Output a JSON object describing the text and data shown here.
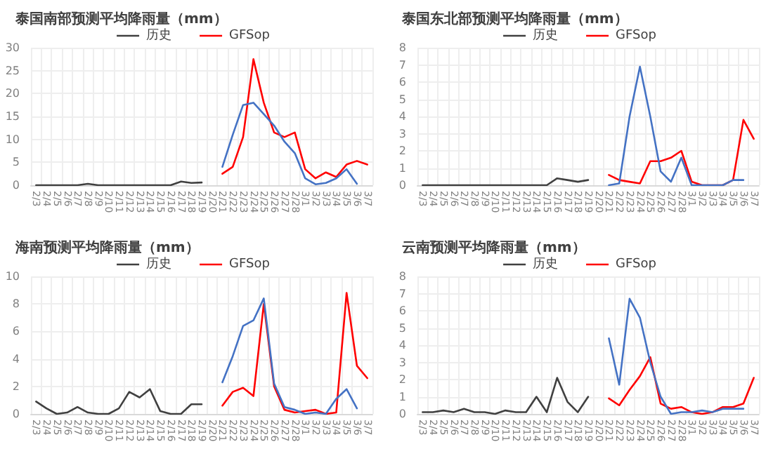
{
  "chart_data": [
    {
      "type": "line",
      "title": "泰国南部预测平均降雨量（mm）",
      "categories": [
        "2/3",
        "2/4",
        "2/5",
        "2/6",
        "2/7",
        "2/8",
        "2/9",
        "2/10",
        "2/11",
        "2/12",
        "2/13",
        "2/14",
        "2/15",
        "2/16",
        "2/17",
        "2/18",
        "2/19",
        "2/20",
        "2/21",
        "2/22",
        "2/23",
        "2/24",
        "2/25",
        "2/26",
        "2/27",
        "2/28",
        "3/1",
        "3/2",
        "3/3",
        "3/4",
        "3/5",
        "3/6",
        "3/7"
      ],
      "series": [
        {
          "name": "历史",
          "color": "#404040",
          "values": [
            0,
            0,
            0,
            0,
            0,
            0.3,
            0,
            0,
            0,
            0,
            0,
            0,
            0,
            0,
            0.8,
            0.5,
            0.6,
            null,
            null,
            null,
            null,
            null,
            null,
            null,
            null,
            null,
            null,
            null,
            null,
            null,
            null,
            null,
            null
          ]
        },
        {
          "name": "GFSop",
          "color": "#ff0000",
          "values": [
            null,
            null,
            null,
            null,
            null,
            null,
            null,
            null,
            null,
            null,
            null,
            null,
            null,
            null,
            null,
            null,
            null,
            null,
            2.5,
            4,
            10.5,
            27.5,
            18,
            11.5,
            10.5,
            11.5,
            3.5,
            1.5,
            2.8,
            1.8,
            4.5,
            5.3,
            4.5
          ]
        },
        {
          "color": "#4472c4",
          "values": [
            null,
            null,
            null,
            null,
            null,
            null,
            null,
            null,
            null,
            null,
            null,
            null,
            null,
            null,
            null,
            null,
            null,
            null,
            4,
            11,
            17.5,
            18,
            15.5,
            13,
            9.5,
            7,
            1.5,
            0.2,
            0.5,
            1.5,
            3.5,
            0.3,
            null
          ]
        }
      ],
      "ylim": [
        0,
        30
      ],
      "yticks": [
        0,
        5,
        10,
        15,
        20,
        25,
        30
      ],
      "grid": true,
      "legend": "top",
      "marker": "none"
    },
    {
      "type": "line",
      "title": "泰国东北部预测平均降雨量（mm）",
      "categories": [
        "2/3",
        "2/4",
        "2/5",
        "2/6",
        "2/7",
        "2/8",
        "2/9",
        "2/10",
        "2/11",
        "2/12",
        "2/13",
        "2/14",
        "2/15",
        "2/16",
        "2/17",
        "2/18",
        "2/19",
        "2/20",
        "2/21",
        "2/22",
        "2/23",
        "2/24",
        "2/25",
        "2/26",
        "2/27",
        "2/28",
        "3/1",
        "3/2",
        "3/3",
        "3/4",
        "3/5",
        "3/6",
        "3/7"
      ],
      "series": [
        {
          "name": "历史",
          "color": "#404040",
          "values": [
            0,
            0,
            0,
            0,
            0,
            0,
            0,
            0,
            0,
            0,
            0,
            0,
            0,
            0.4,
            0.3,
            0.2,
            0.3,
            null,
            null,
            null,
            null,
            null,
            null,
            null,
            null,
            null,
            null,
            null,
            null,
            null,
            null,
            null,
            null
          ]
        },
        {
          "name": "GFSop",
          "color": "#ff0000",
          "values": [
            null,
            null,
            null,
            null,
            null,
            null,
            null,
            null,
            null,
            null,
            null,
            null,
            null,
            null,
            null,
            null,
            null,
            null,
            0.6,
            0.3,
            0.2,
            0.1,
            1.4,
            1.4,
            1.6,
            2,
            0.2,
            0,
            0,
            0,
            0.3,
            3.8,
            2.7
          ]
        },
        {
          "color": "#4472c4",
          "values": [
            null,
            null,
            null,
            null,
            null,
            null,
            null,
            null,
            null,
            null,
            null,
            null,
            null,
            null,
            null,
            null,
            null,
            null,
            0,
            0.1,
            4,
            6.9,
            4,
            0.8,
            0.2,
            1.6,
            0,
            0,
            0,
            0,
            0.3,
            0.3,
            null
          ]
        }
      ],
      "ylim": [
        0,
        8
      ],
      "yticks": [
        0,
        1,
        2,
        3,
        4,
        5,
        6,
        7,
        8
      ],
      "grid": true,
      "legend": "top",
      "marker": "none"
    },
    {
      "type": "line",
      "title": "海南预测平均降雨量（mm）",
      "categories": [
        "2/3",
        "2/4",
        "2/5",
        "2/6",
        "2/7",
        "2/8",
        "2/9",
        "2/10",
        "2/11",
        "2/12",
        "2/13",
        "2/14",
        "2/15",
        "2/16",
        "2/17",
        "2/18",
        "2/19",
        "2/20",
        "2/21",
        "2/22",
        "2/23",
        "2/24",
        "2/25",
        "2/26",
        "2/27",
        "2/28",
        "3/1",
        "3/2",
        "3/3",
        "3/4",
        "3/5",
        "3/6",
        "3/7"
      ],
      "series": [
        {
          "name": "历史",
          "color": "#404040",
          "values": [
            0.9,
            0.4,
            0,
            0.1,
            0.5,
            0.1,
            0,
            0,
            0.4,
            1.6,
            1.2,
            1.8,
            0.2,
            0,
            0,
            0.7,
            0.7,
            null,
            null,
            null,
            null,
            null,
            null,
            null,
            null,
            null,
            null,
            null,
            null,
            null,
            null,
            null,
            null
          ]
        },
        {
          "name": "GFSop",
          "color": "#ff0000",
          "values": [
            null,
            null,
            null,
            null,
            null,
            null,
            null,
            null,
            null,
            null,
            null,
            null,
            null,
            null,
            null,
            null,
            null,
            null,
            0.6,
            1.6,
            1.9,
            1.3,
            8,
            2,
            0.3,
            0.1,
            0.2,
            0.3,
            0,
            0.1,
            8.8,
            3.5,
            2.6
          ]
        },
        {
          "color": "#4472c4",
          "values": [
            null,
            null,
            null,
            null,
            null,
            null,
            null,
            null,
            null,
            null,
            null,
            null,
            null,
            null,
            null,
            null,
            null,
            null,
            2.3,
            4.2,
            6.4,
            6.8,
            8.4,
            2.2,
            0.5,
            0.3,
            0,
            0.1,
            0,
            1.1,
            1.8,
            0.4,
            null
          ]
        }
      ],
      "ylim": [
        0,
        10
      ],
      "yticks": [
        0,
        2,
        4,
        6,
        8,
        10
      ],
      "grid": true,
      "legend": "top",
      "marker": "none"
    },
    {
      "type": "line",
      "title": "云南预测平均降雨量（mm）",
      "categories": [
        "2/3",
        "2/4",
        "2/5",
        "2/6",
        "2/7",
        "2/8",
        "2/9",
        "2/10",
        "2/11",
        "2/12",
        "2/13",
        "2/14",
        "2/15",
        "2/16",
        "2/17",
        "2/18",
        "2/19",
        "2/20",
        "2/21",
        "2/22",
        "2/23",
        "2/24",
        "2/25",
        "2/26",
        "2/27",
        "2/28",
        "3/1",
        "3/2",
        "3/3",
        "3/4",
        "3/5",
        "3/6",
        "3/7"
      ],
      "series": [
        {
          "name": "历史",
          "color": "#404040",
          "values": [
            0.1,
            0.1,
            0.2,
            0.1,
            0.3,
            0.1,
            0.1,
            0,
            0.2,
            0.1,
            0.1,
            1,
            0.1,
            2.1,
            0.7,
            0.1,
            1,
            null,
            null,
            null,
            null,
            null,
            null,
            null,
            null,
            null,
            null,
            null,
            null,
            null,
            null,
            null,
            null
          ]
        },
        {
          "name": "GFSop",
          "color": "#ff0000",
          "values": [
            null,
            null,
            null,
            null,
            null,
            null,
            null,
            null,
            null,
            null,
            null,
            null,
            null,
            null,
            null,
            null,
            null,
            null,
            0.9,
            0.5,
            1.4,
            2.2,
            3.3,
            0.6,
            0.3,
            0.4,
            0.1,
            0,
            0.1,
            0.4,
            0.4,
            0.6,
            2.1
          ]
        },
        {
          "color": "#4472c4",
          "values": [
            null,
            null,
            null,
            null,
            null,
            null,
            null,
            null,
            null,
            null,
            null,
            null,
            null,
            null,
            null,
            null,
            null,
            null,
            4.4,
            1.7,
            6.7,
            5.6,
            3,
            1,
            0,
            0.1,
            0.1,
            0.2,
            0.1,
            0.3,
            0.3,
            0.3,
            null
          ]
        }
      ],
      "ylim": [
        0,
        8
      ],
      "yticks": [
        0,
        1,
        2,
        3,
        4,
        5,
        6,
        7,
        8
      ],
      "grid": true,
      "legend": "top",
      "marker": "none"
    }
  ]
}
